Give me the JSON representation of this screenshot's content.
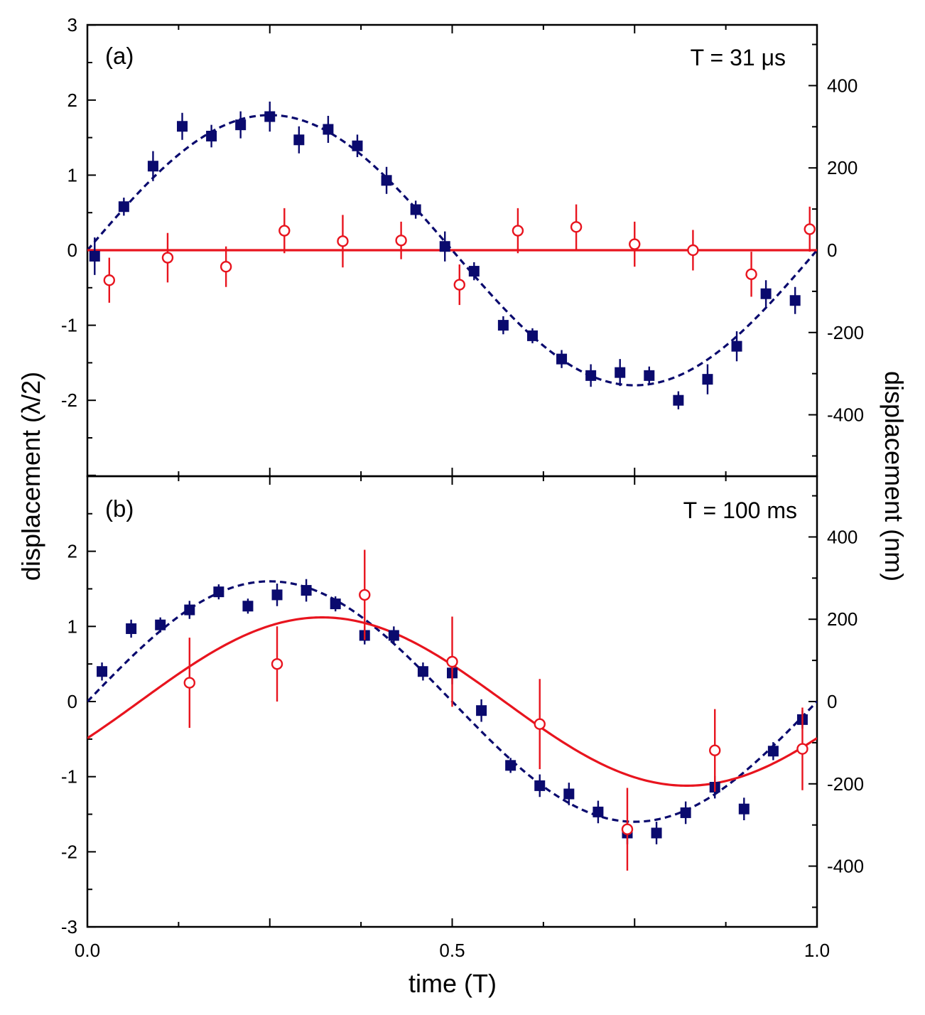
{
  "chart_data": {
    "type": "scatter",
    "xlabel": "time (T)",
    "ylabel_left": "displacement (λ/2)",
    "ylabel_right": "displacement (nm)",
    "xlim": [
      0.0,
      1.0
    ],
    "x_tick_labels": [
      "0.0",
      "0.5",
      "1.0"
    ],
    "x_tick_values": [
      0.0,
      0.5,
      1.0
    ],
    "colors": {
      "blue": "#0a0a6e",
      "red": "#e8141e"
    },
    "panels": [
      {
        "label": "(a)",
        "period_label": "T = 31 μs",
        "ylim_left": [
          -3,
          3
        ],
        "ylim_right": [
          -555,
          555
        ],
        "left_ticks": [
          {
            "value": 3,
            "label": "3"
          },
          {
            "value": 2,
            "label": "2"
          },
          {
            "value": 1,
            "label": "1"
          },
          {
            "value": 0,
            "label": "0"
          },
          {
            "value": -1,
            "label": "-1"
          },
          {
            "value": -2,
            "label": "-2"
          }
        ],
        "right_ticks": [
          {
            "value": 400,
            "label": "400"
          },
          {
            "value": 200,
            "label": "200"
          },
          {
            "value": 0,
            "label": "0"
          },
          {
            "value": -200,
            "label": "-200"
          },
          {
            "value": -400,
            "label": "-400"
          }
        ],
        "series": [
          {
            "name": "squares",
            "marker": "filled-square",
            "color": "blue",
            "points": [
              {
                "x": 0.01,
                "y": -0.08,
                "err": 0.25
              },
              {
                "x": 0.05,
                "y": 0.58,
                "err": 0.12
              },
              {
                "x": 0.09,
                "y": 1.12,
                "err": 0.2
              },
              {
                "x": 0.13,
                "y": 1.65,
                "err": 0.18
              },
              {
                "x": 0.17,
                "y": 1.52,
                "err": 0.15
              },
              {
                "x": 0.21,
                "y": 1.67,
                "err": 0.18
              },
              {
                "x": 0.25,
                "y": 1.78,
                "err": 0.2
              },
              {
                "x": 0.29,
                "y": 1.47,
                "err": 0.18
              },
              {
                "x": 0.33,
                "y": 1.61,
                "err": 0.18
              },
              {
                "x": 0.37,
                "y": 1.39,
                "err": 0.15
              },
              {
                "x": 0.41,
                "y": 0.93,
                "err": 0.18
              },
              {
                "x": 0.45,
                "y": 0.54,
                "err": 0.12
              },
              {
                "x": 0.49,
                "y": 0.05,
                "err": 0.2
              },
              {
                "x": 0.53,
                "y": -0.28,
                "err": 0.12
              },
              {
                "x": 0.57,
                "y": -1.0,
                "err": 0.12
              },
              {
                "x": 0.61,
                "y": -1.14,
                "err": 0.1
              },
              {
                "x": 0.65,
                "y": -1.45,
                "err": 0.12
              },
              {
                "x": 0.69,
                "y": -1.67,
                "err": 0.15
              },
              {
                "x": 0.73,
                "y": -1.63,
                "err": 0.18
              },
              {
                "x": 0.77,
                "y": -1.67,
                "err": 0.12
              },
              {
                "x": 0.81,
                "y": -2.0,
                "err": 0.12
              },
              {
                "x": 0.85,
                "y": -1.72,
                "err": 0.2
              },
              {
                "x": 0.89,
                "y": -1.28,
                "err": 0.2
              },
              {
                "x": 0.93,
                "y": -0.58,
                "err": 0.18
              },
              {
                "x": 0.97,
                "y": -0.67,
                "err": 0.18
              }
            ]
          },
          {
            "name": "circles",
            "marker": "open-circle",
            "color": "red",
            "points": [
              {
                "x": 0.03,
                "y": -0.4,
                "err": 0.3
              },
              {
                "x": 0.11,
                "y": -0.1,
                "err": 0.33
              },
              {
                "x": 0.19,
                "y": -0.22,
                "err": 0.27
              },
              {
                "x": 0.27,
                "y": 0.26,
                "err": 0.3
              },
              {
                "x": 0.35,
                "y": 0.12,
                "err": 0.35
              },
              {
                "x": 0.43,
                "y": 0.13,
                "err": 0.25
              },
              {
                "x": 0.51,
                "y": -0.46,
                "err": 0.27
              },
              {
                "x": 0.59,
                "y": 0.26,
                "err": 0.3
              },
              {
                "x": 0.67,
                "y": 0.31,
                "err": 0.3
              },
              {
                "x": 0.75,
                "y": 0.08,
                "err": 0.3
              },
              {
                "x": 0.83,
                "y": 0.0,
                "err": 0.27
              },
              {
                "x": 0.91,
                "y": -0.32,
                "err": 0.3
              },
              {
                "x": 0.99,
                "y": 0.28,
                "err": 0.3
              }
            ]
          }
        ],
        "fits": [
          {
            "name": "squares-fit",
            "style": "dashed",
            "color": "blue",
            "amplitude": 1.8,
            "phase": 0.0,
            "offset": 0.0
          },
          {
            "name": "circles-fit",
            "style": "solid",
            "color": "red",
            "amplitude": 0.0,
            "phase": 0.0,
            "offset": 0.0
          }
        ]
      },
      {
        "label": "(b)",
        "period_label": "T = 100 ms",
        "ylim_left": [
          -3,
          3
        ],
        "ylim_right": [
          -555,
          555
        ],
        "left_ticks": [
          {
            "value": 2,
            "label": "2"
          },
          {
            "value": 1,
            "label": "1"
          },
          {
            "value": 0,
            "label": "0"
          },
          {
            "value": -1,
            "label": "-1"
          },
          {
            "value": -2,
            "label": "-2"
          },
          {
            "value": -3,
            "label": "-3"
          }
        ],
        "right_ticks": [
          {
            "value": 400,
            "label": "400"
          },
          {
            "value": 200,
            "label": "200"
          },
          {
            "value": 0,
            "label": "0"
          },
          {
            "value": -200,
            "label": "-200"
          },
          {
            "value": -400,
            "label": "-400"
          }
        ],
        "series": [
          {
            "name": "squares",
            "marker": "filled-square",
            "color": "blue",
            "points": [
              {
                "x": 0.02,
                "y": 0.4,
                "err": 0.12
              },
              {
                "x": 0.06,
                "y": 0.97,
                "err": 0.12
              },
              {
                "x": 0.1,
                "y": 1.02,
                "err": 0.1
              },
              {
                "x": 0.14,
                "y": 1.22,
                "err": 0.12
              },
              {
                "x": 0.18,
                "y": 1.46,
                "err": 0.1
              },
              {
                "x": 0.22,
                "y": 1.27,
                "err": 0.1
              },
              {
                "x": 0.26,
                "y": 1.42,
                "err": 0.15
              },
              {
                "x": 0.3,
                "y": 1.48,
                "err": 0.15
              },
              {
                "x": 0.34,
                "y": 1.3,
                "err": 0.1
              },
              {
                "x": 0.38,
                "y": 0.88,
                "err": 0.12
              },
              {
                "x": 0.42,
                "y": 0.88,
                "err": 0.12
              },
              {
                "x": 0.46,
                "y": 0.4,
                "err": 0.12
              },
              {
                "x": 0.5,
                "y": 0.38,
                "err": 0.15
              },
              {
                "x": 0.54,
                "y": -0.12,
                "err": 0.15
              },
              {
                "x": 0.58,
                "y": -0.85,
                "err": 0.1
              },
              {
                "x": 0.62,
                "y": -1.12,
                "err": 0.15
              },
              {
                "x": 0.66,
                "y": -1.23,
                "err": 0.15
              },
              {
                "x": 0.7,
                "y": -1.47,
                "err": 0.15
              },
              {
                "x": 0.74,
                "y": -1.75,
                "err": 0.15
              },
              {
                "x": 0.78,
                "y": -1.75,
                "err": 0.15
              },
              {
                "x": 0.82,
                "y": -1.48,
                "err": 0.15
              },
              {
                "x": 0.86,
                "y": -1.14,
                "err": 0.15
              },
              {
                "x": 0.9,
                "y": -1.43,
                "err": 0.15
              },
              {
                "x": 0.94,
                "y": -0.66,
                "err": 0.12
              },
              {
                "x": 0.98,
                "y": -0.24,
                "err": 0.12
              }
            ]
          },
          {
            "name": "circles",
            "marker": "open-circle",
            "color": "red",
            "points": [
              {
                "x": 0.14,
                "y": 0.25,
                "err": 0.6
              },
              {
                "x": 0.26,
                "y": 0.5,
                "err": 0.5
              },
              {
                "x": 0.38,
                "y": 1.42,
                "err": 0.6
              },
              {
                "x": 0.5,
                "y": 0.53,
                "err": 0.6
              },
              {
                "x": 0.62,
                "y": -0.3,
                "err": 0.6
              },
              {
                "x": 0.74,
                "y": -1.7,
                "err": 0.55
              },
              {
                "x": 0.86,
                "y": -0.65,
                "err": 0.55
              },
              {
                "x": 0.98,
                "y": -0.63,
                "err": 0.55
              }
            ]
          }
        ],
        "fits": [
          {
            "name": "squares-fit",
            "style": "dashed",
            "color": "blue",
            "amplitude": 1.6,
            "phase": 0.0,
            "offset": 0.0
          },
          {
            "name": "circles-fit",
            "style": "solid",
            "color": "red",
            "amplitude": 1.12,
            "phase": -0.45,
            "offset": 0.0
          }
        ]
      }
    ]
  }
}
